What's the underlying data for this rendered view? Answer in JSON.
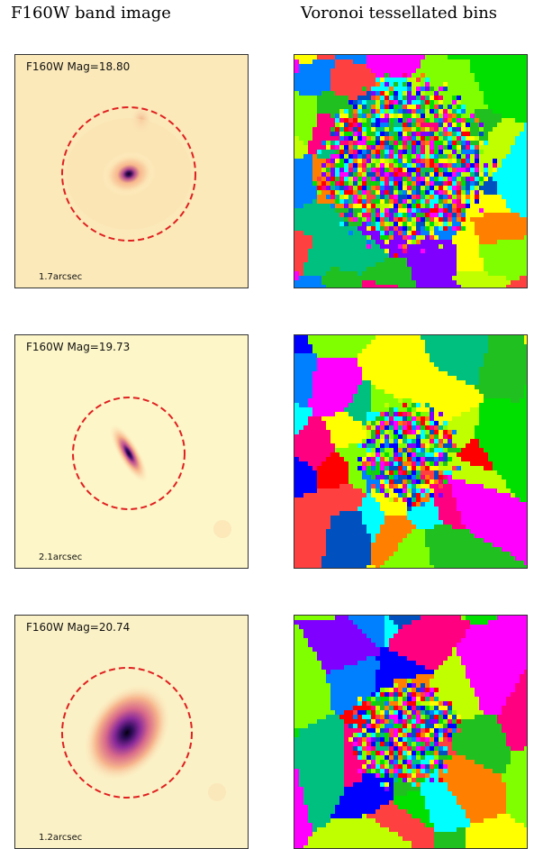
{
  "column_titles": {
    "left": "F160W band image",
    "right": "Voronoi tessellated bins"
  },
  "rows": [
    {
      "mag_label": "F160W Mag=18.80",
      "scale_label": "1.7arcsec"
    },
    {
      "mag_label": "F160W Mag=19.73",
      "scale_label": "2.1arcsec"
    },
    {
      "mag_label": "F160W Mag=20.74",
      "scale_label": "1.2arcsec"
    }
  ],
  "colors": {
    "aperture": "#e02020",
    "image_background": "#fdf3c6",
    "voronoi_palette": [
      "#ff0000",
      "#00e000",
      "#0000ff",
      "#ffff00",
      "#ff00ff",
      "#00ffff",
      "#ff8000",
      "#80ff00",
      "#0080ff",
      "#ff0080",
      "#00c080",
      "#c0ff00",
      "#8000ff",
      "#ff4040",
      "#20c020",
      "#0050c0"
    ]
  }
}
